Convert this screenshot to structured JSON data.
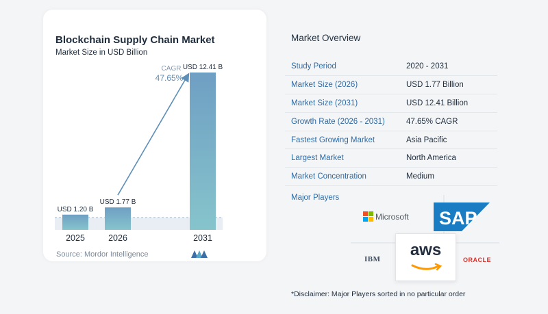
{
  "chart_data": {
    "type": "bar",
    "title": "Blockchain Supply Chain Market",
    "subtitle": "Market Size in USD Billion",
    "categories": [
      "2025",
      "2026",
      "2031"
    ],
    "values": [
      1.2,
      1.77,
      12.41
    ],
    "data_labels": [
      "USD 1.20 B",
      "USD 1.77 B",
      "USD 12.41 B"
    ],
    "xlabel": "",
    "ylabel": "",
    "ylim": [
      0,
      12.41
    ],
    "grid": false,
    "legend": "none",
    "annotation": {
      "label": "CAGR",
      "value": "47.65%"
    }
  },
  "source": "Source:  Mordor Intelligence",
  "colors": {
    "bar_top": "#6f9fc3",
    "bar_bottom": "#86c4cc",
    "arrow": "#5e8fb8",
    "key_text": "#2f6aa3",
    "aws_smile": "#ff9900",
    "oracle": "#e0312b",
    "sap_blue": "#1a7cc2"
  },
  "overview": {
    "title": "Market Overview",
    "rows": [
      {
        "key": "Study Period",
        "value": "2020 - 2031"
      },
      {
        "key": "Market Size (2026)",
        "value": "USD 1.77 Billion"
      },
      {
        "key": "Market Size (2031)",
        "value": "USD 12.41 Billion"
      },
      {
        "key": "Growth Rate (2026 - 2031)",
        "value": "47.65% CAGR"
      },
      {
        "key": "Fastest Growing Market",
        "value": "Asia Pacific"
      },
      {
        "key": "Largest Market",
        "value": "North America"
      },
      {
        "key": "Market Concentration",
        "value": "Medium"
      }
    ]
  },
  "players": {
    "label": "Major Players",
    "names": [
      "Microsoft",
      "SAP",
      "IBM",
      "aws",
      "ORACLE"
    ]
  },
  "disclaimer": "*Disclaimer: Major Players sorted in no particular order",
  "icons": [
    "mordor-intelligence-logo",
    "microsoft-logo",
    "sap-logo",
    "ibm-logo",
    "aws-logo",
    "oracle-logo"
  ]
}
